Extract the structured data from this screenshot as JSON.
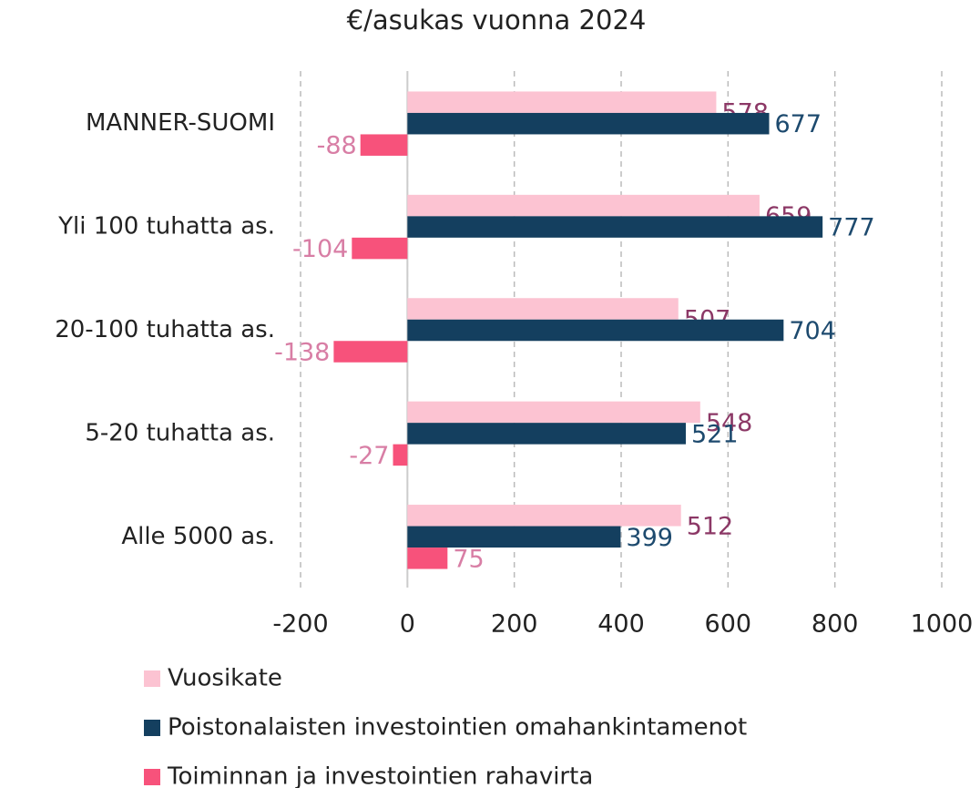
{
  "chart_data": {
    "type": "hbar",
    "title": "€/asukas vuonna 2024",
    "categories": [
      "MANNER-SUOMI",
      "Yli 100 tuhatta as.",
      "20-100 tuhatta as.",
      "5-20 tuhatta as.",
      "Alle 5000 as."
    ],
    "series": [
      {
        "name": "Vuosikate",
        "color": "#fcc3d2",
        "label_color": "#8c3866",
        "values": [
          578,
          659,
          507,
          548,
          512
        ]
      },
      {
        "name": "Poistonalaisten investointien omahankintamenot",
        "color": "#143f5f",
        "label_color": "#1d4a6e",
        "values": [
          677,
          777,
          704,
          521,
          399
        ]
      },
      {
        "name": "Toiminnan ja investointien rahavirta",
        "color": "#f7527b",
        "label_color": "#d87ea5",
        "values": [
          -88,
          -104,
          -138,
          -27,
          75
        ]
      }
    ],
    "xlim": [
      -200,
      1000
    ],
    "xticks": [
      -200,
      0,
      200,
      400,
      600,
      800,
      1000
    ],
    "grid": true
  }
}
